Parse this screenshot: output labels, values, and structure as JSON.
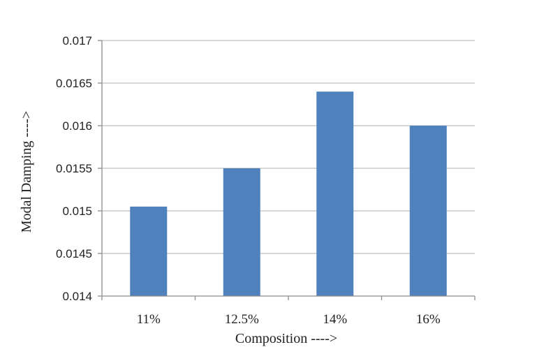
{
  "chart_data": {
    "type": "bar",
    "categories": [
      "11%",
      "12.5%",
      "14%",
      "16%"
    ],
    "values": [
      0.01505,
      0.0155,
      0.0164,
      0.016
    ],
    "title": "",
    "xlabel": "Composition ---->",
    "ylabel": "Modal Damping ---->",
    "ylim": [
      0.014,
      0.017
    ],
    "yticks": [
      "0.014",
      "0.0145",
      "0.015",
      "0.0155",
      "0.016",
      "0.0165",
      "0.017"
    ],
    "grid": "horizontal",
    "legend": "none",
    "bar_color": "#4f81bd",
    "grid_color": "#bfbfbf",
    "axis_color": "#8c8c8c"
  }
}
